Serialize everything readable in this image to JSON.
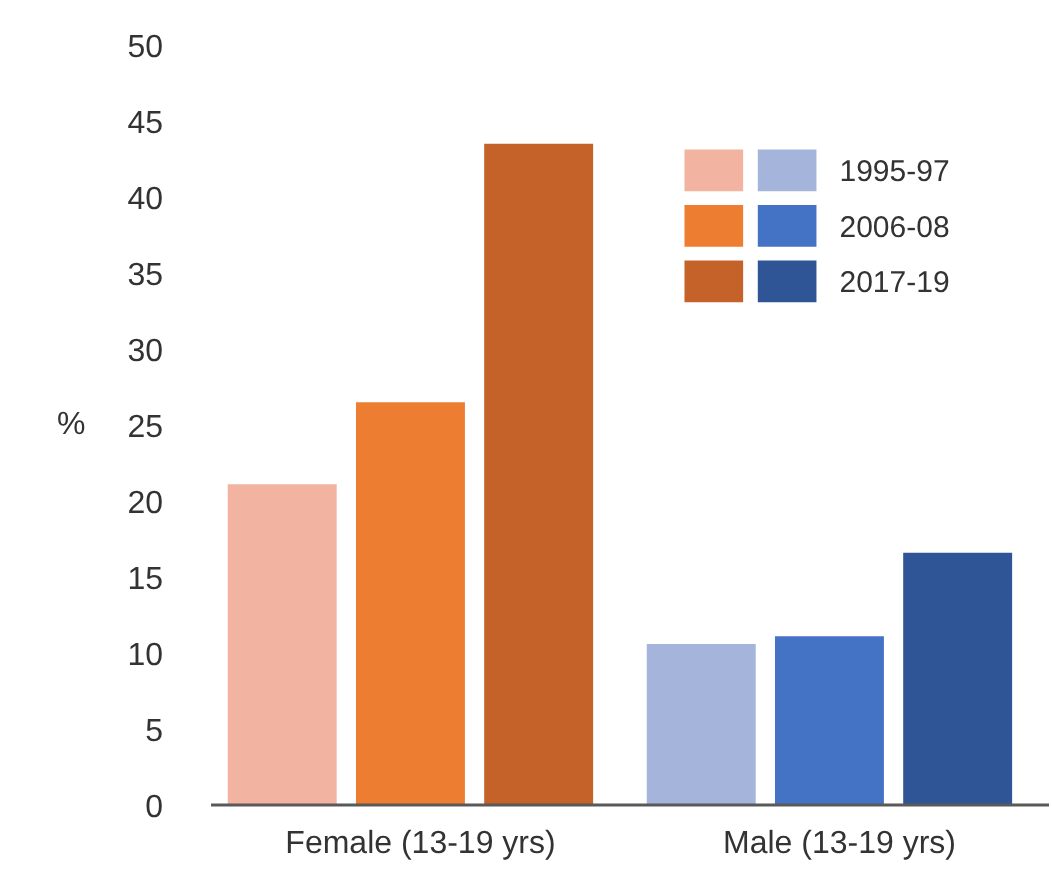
{
  "chart_data": {
    "type": "bar",
    "ylabel": "%",
    "categories": [
      "Female (13-19 yrs)",
      "Male (13-19 yrs)"
    ],
    "series": [
      {
        "name": "1995-97",
        "colors": [
          "#f2b4a0",
          "#a4b4da"
        ],
        "values": [
          21.1,
          10.6
        ]
      },
      {
        "name": "2006-08",
        "colors": [
          "#ed7d31",
          "#4472c4"
        ],
        "values": [
          26.5,
          11.1
        ]
      },
      {
        "name": "2017-19",
        "colors": [
          "#c5622a",
          "#2f5597"
        ],
        "values": [
          43.5,
          16.6
        ]
      }
    ],
    "ylim": [
      0,
      50
    ],
    "yticks": [
      0,
      5,
      10,
      15,
      20,
      25,
      30,
      35,
      40,
      45,
      50
    ],
    "grid": false,
    "legend": "top right"
  }
}
